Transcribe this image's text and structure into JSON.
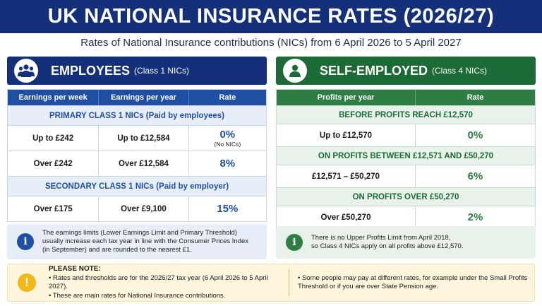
{
  "title": "UK NATIONAL INSURANCE RATES (2026/27)",
  "subtitle": "Rates of National Insurance contributions (NICs) from 6 April 2026 to 5 April 2027",
  "colors": {
    "navy": "#14307a",
    "blue": "#1f4fa3",
    "dark_green": "#1c6a35",
    "green": "#2e7d44",
    "amber": "#f4b71b"
  },
  "employees": {
    "heading": "EMPLOYEES",
    "subheading": "(Class 1 NICs)",
    "icon": "people-group-icon",
    "columns": [
      "Earnings per week",
      "Earnings per year",
      "Rate"
    ],
    "primary_section": "PRIMARY CLASS 1 NICs (Paid by employees)",
    "primary_rows": [
      {
        "week": "Up to £242",
        "year": "Up to £12,584",
        "rate": "0%",
        "note": "(No NICs)"
      },
      {
        "week": "Over £242",
        "year": "Over £12,584",
        "rate": "8%",
        "note": ""
      }
    ],
    "secondary_section": "SECONDARY CLASS 1 NICs (Paid by employer)",
    "secondary_rows": [
      {
        "week": "Over £175",
        "year": "Over £9,100",
        "rate": "15%"
      }
    ],
    "info_icon": "info-icon",
    "info_line1": "The earnings limits (Lower Earnings Limit and Primary Threshold)",
    "info_line2": "usually increase each tax year in line with the Consumer Prices Index",
    "info_line3": "(in September) and are rounded to the nearest £1."
  },
  "self_employed": {
    "heading": "SELF-EMPLOYED",
    "subheading": "(Class 4 NICs)",
    "icon": "person-icon",
    "columns": [
      "Profits per year",
      "Rate"
    ],
    "sections": [
      {
        "label": "BEFORE PROFITS REACH £12,570",
        "range": "Up to £12,570",
        "rate": "0%"
      },
      {
        "label": "ON PROFITS BETWEEN £12,571 AND £50,270",
        "range": "£12,571 – £50,270",
        "rate": "6%"
      },
      {
        "label": "ON PROFITS OVER £50,270",
        "range": "Over £50,270",
        "rate": "2%"
      }
    ],
    "info_icon": "info-icon",
    "info_line1": "There is no Upper Profits Limit from April 2018,",
    "info_line2": "so Class 4 NICs apply on all profits above £12,570."
  },
  "note": {
    "icon": "warning-icon",
    "title": "PLEASE NOTE:",
    "left_items": [
      "Rates and thresholds are for the 2026/27 tax year (6 April 2026 to 5 April 2027).",
      "These are main rates for National Insurance contributions."
    ],
    "right_item": "Some people may pay at different rates, for example under the Small Profits Threshold or if you are over State Pension age."
  }
}
